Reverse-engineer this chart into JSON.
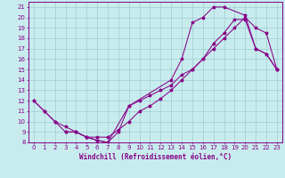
{
  "xlabel": "Windchill (Refroidissement éolien,°C)",
  "bg_color": "#c8ecee",
  "line_color": "#880088",
  "grid_color": "#9ecdd0",
  "spine_color": "#880088",
  "xlim": [
    -0.5,
    23.5
  ],
  "ylim": [
    8,
    21.5
  ],
  "xticks": [
    0,
    1,
    2,
    3,
    4,
    5,
    6,
    7,
    8,
    9,
    10,
    11,
    12,
    13,
    14,
    15,
    16,
    17,
    18,
    19,
    20,
    21,
    22,
    23
  ],
  "yticks": [
    8,
    9,
    10,
    11,
    12,
    13,
    14,
    15,
    16,
    17,
    18,
    19,
    20,
    21
  ],
  "tick_fontsize": 5.0,
  "xlabel_fontsize": 5.5,
  "line1_x": [
    0,
    1,
    2,
    3,
    4,
    5,
    6,
    7,
    9,
    13,
    14,
    15,
    16,
    17,
    18,
    20,
    21,
    22,
    23
  ],
  "line1_y": [
    12,
    11,
    10,
    9,
    9,
    8.5,
    8.2,
    8.0,
    11.5,
    14,
    16,
    19.5,
    20,
    21,
    21,
    20.2,
    17,
    16.5,
    15
  ],
  "line2_x": [
    0,
    1,
    2,
    3,
    4,
    5,
    6,
    7,
    8,
    9,
    10,
    11,
    12,
    13,
    14,
    15,
    16,
    17,
    18,
    19,
    20,
    21,
    22,
    23
  ],
  "line2_y": [
    12,
    11,
    10,
    9.5,
    9.0,
    8.5,
    8.5,
    8.5,
    9.2,
    10.0,
    11.0,
    11.5,
    12.2,
    13.0,
    14.0,
    15.0,
    16.0,
    17.0,
    18.0,
    19.0,
    20.0,
    19.0,
    18.5,
    15.0
  ],
  "line3_x": [
    3,
    4,
    5,
    6,
    7,
    8,
    9,
    10,
    11,
    12,
    13,
    14,
    15,
    16,
    17,
    18,
    19,
    20,
    21,
    22,
    23
  ],
  "line3_y": [
    9.0,
    9.0,
    8.5,
    8.2,
    8.0,
    9.0,
    11.5,
    12.0,
    12.5,
    13.0,
    13.5,
    14.5,
    15.0,
    16.0,
    17.5,
    18.5,
    19.8,
    19.8,
    17.0,
    16.5,
    15.0
  ]
}
